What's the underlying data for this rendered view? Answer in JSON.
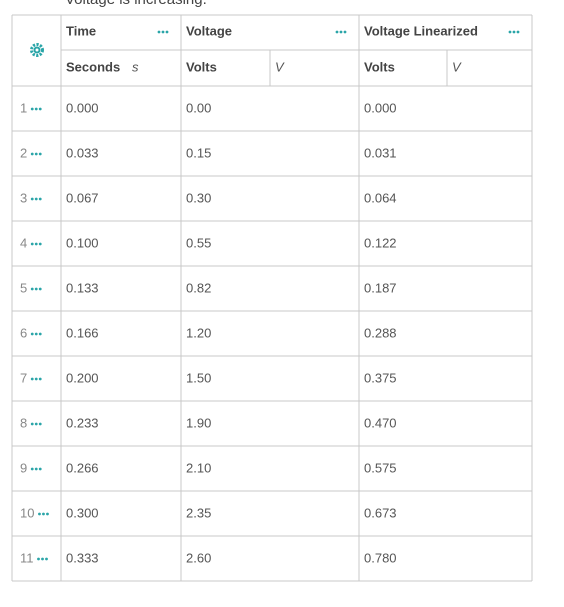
{
  "caption": "Voltage is increasing.",
  "table": {
    "columns": [
      {
        "name": "Time",
        "unit_name": "Seconds",
        "unit_symbol": "s"
      },
      {
        "name": "Voltage",
        "unit_name": "Volts",
        "unit_symbol": "V"
      },
      {
        "name": "Voltage Linearized",
        "unit_name": "Volts",
        "unit_symbol": "V"
      }
    ],
    "rows": [
      {
        "index": "1",
        "cells": [
          "0.000",
          "0.00",
          "0.000"
        ]
      },
      {
        "index": "2",
        "cells": [
          "0.033",
          "0.15",
          "0.031"
        ]
      },
      {
        "index": "3",
        "cells": [
          "0.067",
          "0.30",
          "0.064"
        ]
      },
      {
        "index": "4",
        "cells": [
          "0.100",
          "0.55",
          "0.122"
        ]
      },
      {
        "index": "5",
        "cells": [
          "0.133",
          "0.82",
          "0.187"
        ]
      },
      {
        "index": "6",
        "cells": [
          "0.166",
          "1.20",
          "0.288"
        ]
      },
      {
        "index": "7",
        "cells": [
          "0.200",
          "1.50",
          "0.375"
        ]
      },
      {
        "index": "8",
        "cells": [
          "0.233",
          "1.90",
          "0.470"
        ]
      },
      {
        "index": "9",
        "cells": [
          "0.266",
          "2.10",
          "0.575"
        ]
      },
      {
        "index": "10",
        "cells": [
          "0.300",
          "2.35",
          "0.673"
        ]
      },
      {
        "index": "11",
        "cells": [
          "0.333",
          "2.60",
          "0.780"
        ]
      }
    ]
  }
}
